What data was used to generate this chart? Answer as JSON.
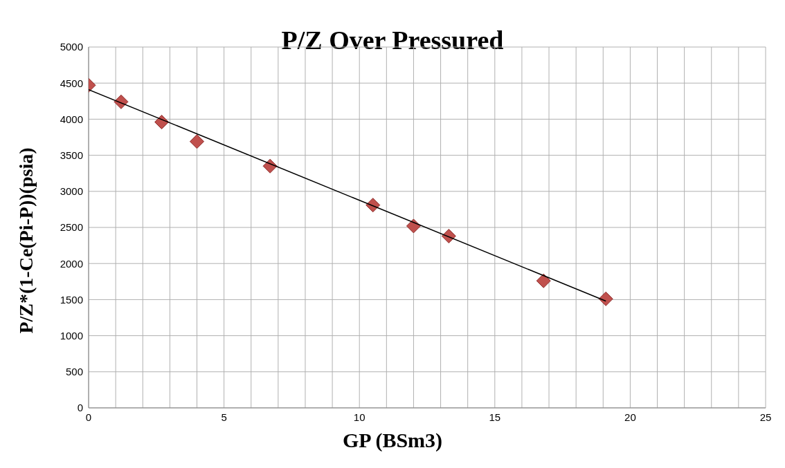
{
  "chart_data": {
    "type": "scatter",
    "title": "P/Z Over Pressured",
    "xlabel": "GP (BSm3)",
    "ylabel": "P/Z*(1-Ce(Pi-P))(psia)",
    "xlim": [
      0,
      25
    ],
    "xticks": [
      0,
      {
        "value": 1,
        "label": null
      },
      {
        "value": 2,
        "label": null
      },
      {
        "value": 3,
        "label": null
      },
      {
        "value": 4,
        "label": null
      },
      5,
      {
        "value": 6,
        "label": null
      },
      {
        "value": 7,
        "label": null
      },
      {
        "value": 8,
        "label": null
      },
      {
        "value": 9,
        "label": null
      },
      10,
      {
        "value": 11,
        "label": null
      },
      {
        "value": 12,
        "label": null
      },
      {
        "value": 13,
        "label": null
      },
      {
        "value": 14,
        "label": null
      },
      15,
      {
        "value": 16,
        "label": null
      },
      {
        "value": 17,
        "label": null
      },
      {
        "value": 18,
        "label": null
      },
      {
        "value": 19,
        "label": null
      },
      20,
      {
        "value": 21,
        "label": null
      },
      {
        "value": 22,
        "label": null
      },
      {
        "value": 23,
        "label": null
      },
      {
        "value": 24,
        "label": null
      },
      25
    ],
    "ylim": [
      0,
      5000
    ],
    "yticks": [
      0,
      500,
      1000,
      1500,
      2000,
      2500,
      3000,
      3500,
      4000,
      4500,
      5000
    ],
    "grid": true,
    "series": [
      {
        "color": "#c0504d",
        "marker": "diamond",
        "x": [
          0,
          1.2,
          2.7,
          4.0,
          6.7,
          10.5,
          12.0,
          13.3,
          16.8,
          19.1
        ],
        "values": [
          4470,
          4240,
          3960,
          3690,
          3350,
          2810,
          2520,
          2380,
          1760,
          1510
        ]
      },
      {
        "type": "line",
        "color": "#000000",
        "marker": "none",
        "line_style": "solid",
        "x": [
          0,
          19.1
        ],
        "values": [
          4410,
          1480
        ]
      }
    ]
  }
}
